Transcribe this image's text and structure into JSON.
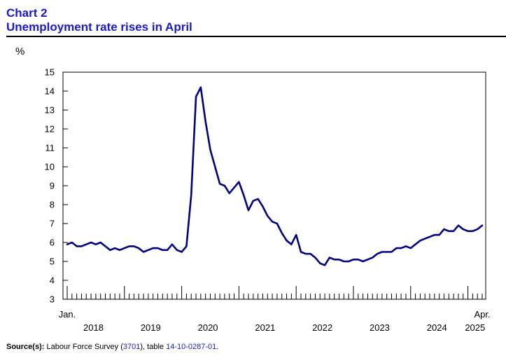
{
  "header": {
    "chart_label": "Chart 2",
    "title": "Unemployment rate rises in April"
  },
  "source": {
    "label": "Source(s):",
    "text_1": " Labour Force Survey (",
    "survey_code": "3701",
    "text_2": "), table ",
    "table_id": "14-10-0287-01",
    "text_3": "."
  },
  "colors": {
    "line": "#000080",
    "title": "#1a1acc",
    "link": "#1a1acc"
  },
  "chart_data": {
    "type": "line",
    "title": "Unemployment rate rises in April",
    "ylabel": "%",
    "ylim": [
      3,
      15
    ],
    "yticks": [
      3,
      4,
      5,
      6,
      7,
      8,
      9,
      10,
      11,
      12,
      13,
      14,
      15
    ],
    "x_start_label": "Jan.",
    "x_end_label": "Apr.",
    "year_labels": [
      "2018",
      "2019",
      "2020",
      "2021",
      "2022",
      "2023",
      "2024",
      "2025"
    ],
    "grid": false,
    "series": [
      {
        "name": "",
        "x": [
          "2018-01",
          "2018-02",
          "2018-03",
          "2018-04",
          "2018-05",
          "2018-06",
          "2018-07",
          "2018-08",
          "2018-09",
          "2018-10",
          "2018-11",
          "2018-12",
          "2019-01",
          "2019-02",
          "2019-03",
          "2019-04",
          "2019-05",
          "2019-06",
          "2019-07",
          "2019-08",
          "2019-09",
          "2019-10",
          "2019-11",
          "2019-12",
          "2020-01",
          "2020-02",
          "2020-03",
          "2020-04",
          "2020-05",
          "2020-06",
          "2020-07",
          "2020-08",
          "2020-09",
          "2020-10",
          "2020-11",
          "2020-12",
          "2021-01",
          "2021-02",
          "2021-03",
          "2021-04",
          "2021-05",
          "2021-06",
          "2021-07",
          "2021-08",
          "2021-09",
          "2021-10",
          "2021-11",
          "2021-12",
          "2022-01",
          "2022-02",
          "2022-03",
          "2022-04",
          "2022-05",
          "2022-06",
          "2022-07",
          "2022-08",
          "2022-09",
          "2022-10",
          "2022-11",
          "2022-12",
          "2023-01",
          "2023-02",
          "2023-03",
          "2023-04",
          "2023-05",
          "2023-06",
          "2023-07",
          "2023-08",
          "2023-09",
          "2023-10",
          "2023-11",
          "2023-12",
          "2024-01",
          "2024-02",
          "2024-03",
          "2024-04",
          "2024-05",
          "2024-06",
          "2024-07",
          "2024-08",
          "2024-09",
          "2024-10",
          "2024-11",
          "2024-12",
          "2025-01",
          "2025-02",
          "2025-03",
          "2025-04"
        ],
        "values": [
          5.9,
          6.0,
          5.8,
          5.8,
          5.9,
          6.0,
          5.9,
          6.0,
          5.8,
          5.6,
          5.7,
          5.6,
          5.7,
          5.8,
          5.8,
          5.7,
          5.5,
          5.6,
          5.7,
          5.7,
          5.6,
          5.6,
          5.9,
          5.6,
          5.5,
          5.8,
          8.5,
          13.7,
          14.2,
          12.4,
          10.9,
          10.0,
          9.1,
          9.0,
          8.6,
          8.9,
          9.2,
          8.5,
          7.7,
          8.2,
          8.3,
          7.9,
          7.4,
          7.1,
          7.0,
          6.5,
          6.1,
          5.9,
          6.4,
          5.5,
          5.4,
          5.4,
          5.2,
          4.9,
          4.8,
          5.2,
          5.1,
          5.1,
          5.0,
          5.0,
          5.1,
          5.1,
          5.0,
          5.1,
          5.2,
          5.4,
          5.5,
          5.5,
          5.5,
          5.7,
          5.7,
          5.8,
          5.7,
          5.9,
          6.1,
          6.2,
          6.3,
          6.4,
          6.4,
          6.7,
          6.6,
          6.6,
          6.9,
          6.7,
          6.6,
          6.6,
          6.7,
          6.9
        ]
      }
    ]
  }
}
